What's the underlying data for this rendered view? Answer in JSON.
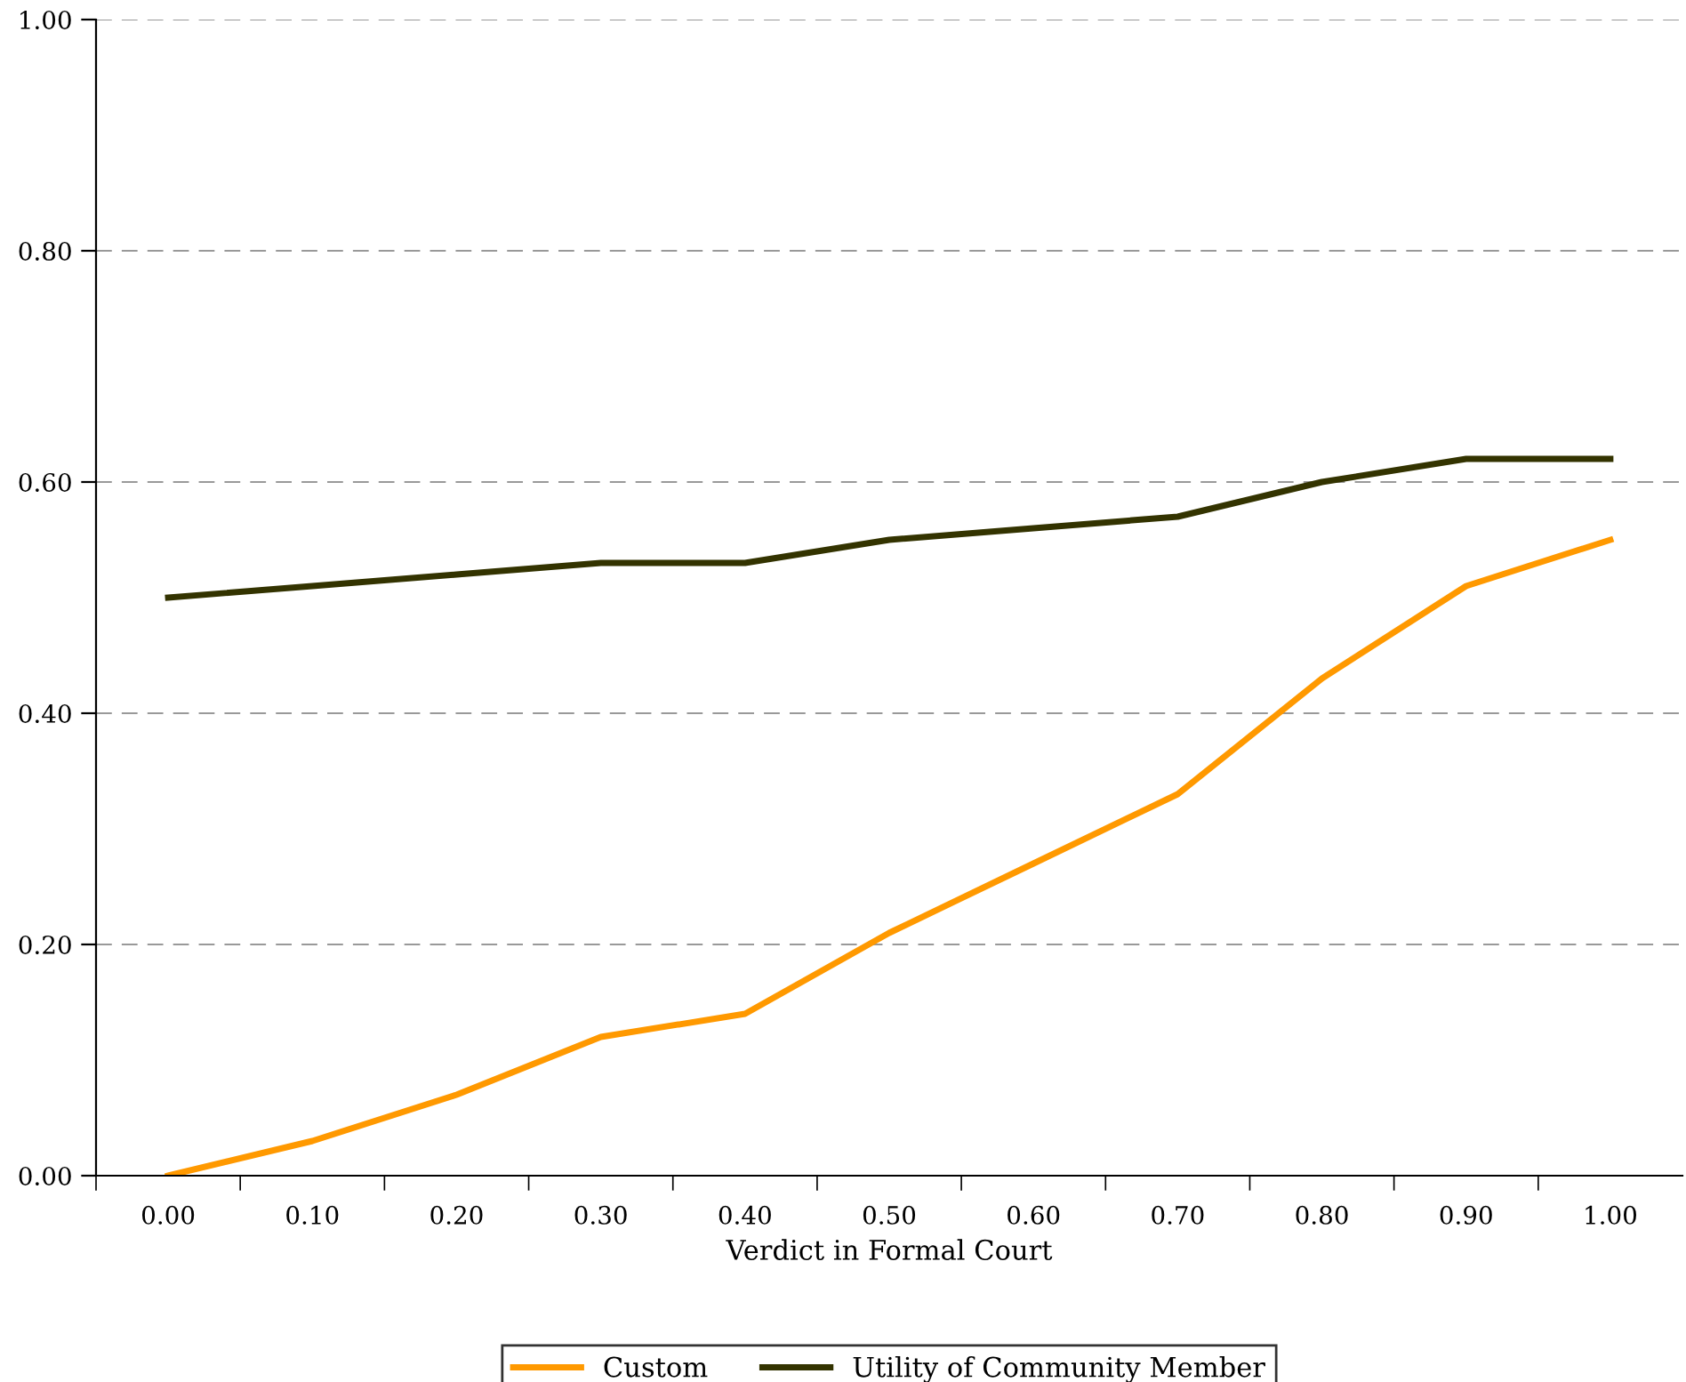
{
  "chart_data": {
    "type": "line",
    "xlabel": "Verdict in Formal Court",
    "categories": [
      "0.00",
      "0.10",
      "0.20",
      "0.30",
      "0.40",
      "0.50",
      "0.60",
      "0.70",
      "0.80",
      "0.90",
      "1.00"
    ],
    "series": [
      {
        "name": "Custom",
        "color": "#ff9900",
        "values": [
          0.0,
          0.03,
          0.07,
          0.12,
          0.14,
          0.21,
          0.27,
          0.33,
          0.43,
          0.51,
          0.55
        ]
      },
      {
        "name": "Utility of Community Member",
        "color": "#333300",
        "values": [
          0.5,
          0.51,
          0.52,
          0.53,
          0.53,
          0.55,
          0.56,
          0.57,
          0.6,
          0.62,
          0.62
        ]
      }
    ],
    "ylim": [
      0,
      1
    ],
    "yticks": [
      {
        "value": 0,
        "label": "0.00"
      },
      {
        "value": 0.2,
        "label": "0.20"
      },
      {
        "value": 0.4,
        "label": "0.40"
      },
      {
        "value": 0.6,
        "label": "0.60"
      },
      {
        "value": 0.8,
        "label": "0.80"
      },
      {
        "value": 1,
        "label": "1.00"
      }
    ],
    "grid": "y",
    "legend": "bottom",
    "marker": "none",
    "line_style": "solid"
  }
}
